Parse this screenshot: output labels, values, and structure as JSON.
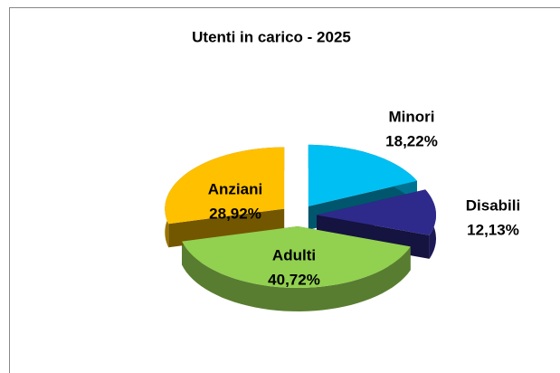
{
  "chart_data": {
    "type": "pie",
    "title": "Utenti in carico - 2025",
    "categories": [
      "Minori",
      "Disabili",
      "Adulti",
      "Anziani"
    ],
    "values": [
      18.22,
      12.13,
      40.72,
      28.92
    ],
    "value_labels": [
      "18,22%",
      "12,13%",
      "40,72%",
      "28,92%"
    ],
    "colors": [
      "#00bff3",
      "#2e2a8c",
      "#92d050",
      "#ffc000"
    ]
  }
}
